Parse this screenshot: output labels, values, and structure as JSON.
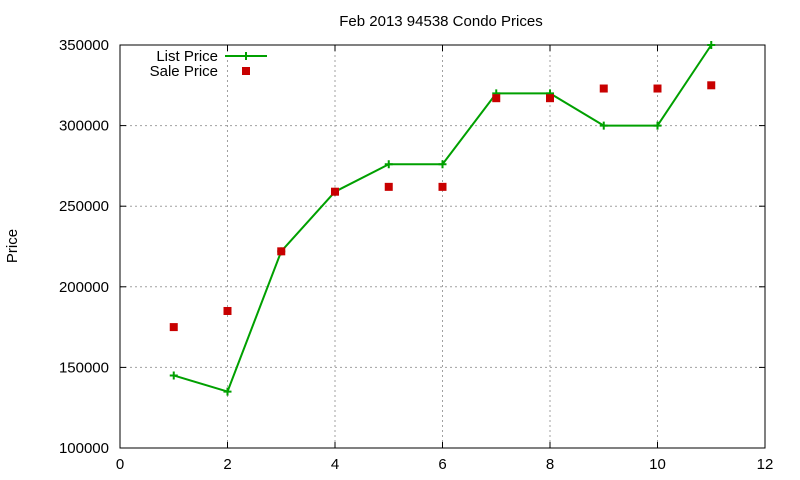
{
  "chart_data": {
    "type": "line",
    "title": "Feb 2013 94538 Condo Prices",
    "xlabel": "",
    "ylabel": "Price",
    "xlim": [
      0,
      12
    ],
    "ylim": [
      100000,
      350000
    ],
    "xticks": [
      0,
      2,
      4,
      6,
      8,
      10,
      12
    ],
    "yticks": [
      100000,
      150000,
      200000,
      250000,
      300000,
      350000
    ],
    "grid": true,
    "legend_position": "top-left",
    "series": [
      {
        "name": "List Price",
        "style": "line-with-plus-markers",
        "color": "#00a000",
        "x": [
          1,
          2,
          3,
          4,
          5,
          6,
          7,
          8,
          9,
          10,
          11
        ],
        "values": [
          145000,
          135000,
          222000,
          259000,
          276000,
          276000,
          320000,
          320000,
          300000,
          300000,
          350000
        ]
      },
      {
        "name": "Sale Price",
        "style": "square-markers",
        "color": "#c80000",
        "x": [
          1,
          2,
          3,
          4,
          5,
          6,
          7,
          8,
          9,
          10,
          11
        ],
        "values": [
          175000,
          185000,
          222000,
          259000,
          262000,
          262000,
          317000,
          317000,
          323000,
          323000,
          325000
        ]
      }
    ]
  }
}
